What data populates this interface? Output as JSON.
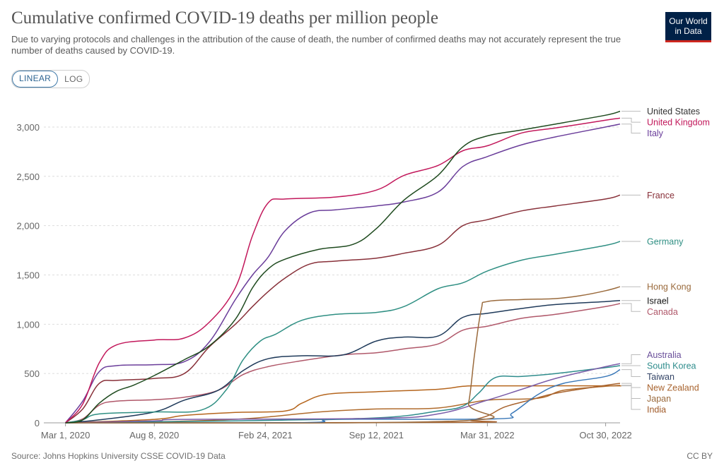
{
  "header": {
    "title": "Cumulative confirmed COVID-19 deaths per million people",
    "subtitle": "Due to varying protocols and challenges in the attribution of the cause of death, the number of confirmed deaths may not accurately represent the true number of deaths caused by COVID-19.",
    "logo_line1": "Our World",
    "logo_line2": "in Data",
    "logo_color": "#002147",
    "logo_accent": "#ce261e"
  },
  "scale_toggle": {
    "linear_label": "LINEAR",
    "log_label": "LOG",
    "selected": "LINEAR"
  },
  "footer": {
    "source": "Source: Johns Hopkins University CSSE COVID-19 Data",
    "license": "CC BY"
  },
  "chart_data": {
    "type": "line",
    "title": "Cumulative confirmed COVID-19 deaths per million people",
    "x_axis": {
      "type": "date",
      "range": [
        "2020-01-22",
        "2022-11-25"
      ],
      "ticks": [
        {
          "date": "2020-03-01",
          "label": "Mar 1, 2020"
        },
        {
          "date": "2020-08-08",
          "label": "Aug 8, 2020"
        },
        {
          "date": "2021-02-24",
          "label": "Feb 24, 2021"
        },
        {
          "date": "2021-09-12",
          "label": "Sep 12, 2021"
        },
        {
          "date": "2022-03-31",
          "label": "Mar 31, 2022"
        },
        {
          "date": "2022-10-30",
          "label": "Oct 30, 2022"
        }
      ]
    },
    "y_axis": {
      "range": [
        0,
        3200
      ],
      "ticks": [
        {
          "value": 0,
          "label": "0"
        },
        {
          "value": 500,
          "label": "500"
        },
        {
          "value": 1000,
          "label": "1,000"
        },
        {
          "value": 1500,
          "label": "1,500"
        },
        {
          "value": 2000,
          "label": "2,000"
        },
        {
          "value": 2500,
          "label": "2,500"
        },
        {
          "value": 3000,
          "label": "3,000"
        }
      ],
      "grid": true
    },
    "legend": "right-end-labels",
    "series": [
      {
        "name": "United States",
        "color": "#1e4a1e",
        "label_color": "#333333",
        "points": [
          [
            "2020-03-01",
            0
          ],
          [
            "2020-04-01",
            30
          ],
          [
            "2020-05-01",
            200
          ],
          [
            "2020-06-01",
            320
          ],
          [
            "2020-07-01",
            380
          ],
          [
            "2020-08-08",
            480
          ],
          [
            "2020-10-01",
            640
          ],
          [
            "2020-11-15",
            780
          ],
          [
            "2021-01-01",
            1050
          ],
          [
            "2021-02-01",
            1370
          ],
          [
            "2021-03-01",
            1560
          ],
          [
            "2021-04-01",
            1660
          ],
          [
            "2021-06-01",
            1760
          ],
          [
            "2021-08-01",
            1810
          ],
          [
            "2021-09-12",
            1970
          ],
          [
            "2021-11-01",
            2260
          ],
          [
            "2022-01-01",
            2510
          ],
          [
            "2022-02-15",
            2800
          ],
          [
            "2022-03-31",
            2910
          ],
          [
            "2022-06-01",
            2970
          ],
          [
            "2022-08-01",
            3030
          ],
          [
            "2022-10-30",
            3120
          ],
          [
            "2022-11-25",
            3160
          ]
        ]
      },
      {
        "name": "United Kingdom",
        "color": "#c2185b",
        "label_color": "#c2185b",
        "points": [
          [
            "2020-03-01",
            0
          ],
          [
            "2020-04-01",
            190
          ],
          [
            "2020-05-01",
            610
          ],
          [
            "2020-06-01",
            790
          ],
          [
            "2020-08-08",
            840
          ],
          [
            "2020-10-01",
            860
          ],
          [
            "2020-11-15",
            1020
          ],
          [
            "2021-01-01",
            1370
          ],
          [
            "2021-02-01",
            1900
          ],
          [
            "2021-03-01",
            2230
          ],
          [
            "2021-04-01",
            2270
          ],
          [
            "2021-07-01",
            2290
          ],
          [
            "2021-09-12",
            2360
          ],
          [
            "2021-11-01",
            2510
          ],
          [
            "2022-01-01",
            2610
          ],
          [
            "2022-02-15",
            2760
          ],
          [
            "2022-03-31",
            2810
          ],
          [
            "2022-06-01",
            2940
          ],
          [
            "2022-08-01",
            2990
          ],
          [
            "2022-10-30",
            3070
          ],
          [
            "2022-11-25",
            3090
          ]
        ]
      },
      {
        "name": "Italy",
        "color": "#6a3d9a",
        "label_color": "#6a3d9a",
        "points": [
          [
            "2020-03-01",
            0
          ],
          [
            "2020-04-01",
            220
          ],
          [
            "2020-05-01",
            520
          ],
          [
            "2020-06-01",
            580
          ],
          [
            "2020-08-08",
            590
          ],
          [
            "2020-10-01",
            620
          ],
          [
            "2020-11-15",
            820
          ],
          [
            "2021-01-01",
            1250
          ],
          [
            "2021-02-01",
            1500
          ],
          [
            "2021-03-01",
            1680
          ],
          [
            "2021-04-01",
            1950
          ],
          [
            "2021-05-15",
            2130
          ],
          [
            "2021-07-01",
            2160
          ],
          [
            "2021-09-12",
            2200
          ],
          [
            "2021-11-01",
            2240
          ],
          [
            "2022-01-01",
            2340
          ],
          [
            "2022-02-15",
            2600
          ],
          [
            "2022-03-31",
            2700
          ],
          [
            "2022-06-01",
            2820
          ],
          [
            "2022-08-01",
            2900
          ],
          [
            "2022-10-30",
            3000
          ],
          [
            "2022-11-25",
            3030
          ]
        ]
      },
      {
        "name": "France",
        "color": "#883039",
        "label_color": "#883039",
        "points": [
          [
            "2020-03-01",
            0
          ],
          [
            "2020-04-01",
            140
          ],
          [
            "2020-05-01",
            400
          ],
          [
            "2020-06-01",
            430
          ],
          [
            "2020-08-08",
            450
          ],
          [
            "2020-10-01",
            500
          ],
          [
            "2020-11-15",
            770
          ],
          [
            "2021-01-01",
            1000
          ],
          [
            "2021-02-01",
            1180
          ],
          [
            "2021-03-01",
            1330
          ],
          [
            "2021-04-01",
            1470
          ],
          [
            "2021-05-15",
            1610
          ],
          [
            "2021-07-01",
            1640
          ],
          [
            "2021-09-12",
            1670
          ],
          [
            "2021-11-01",
            1720
          ],
          [
            "2022-01-01",
            1800
          ],
          [
            "2022-02-15",
            2000
          ],
          [
            "2022-03-31",
            2060
          ],
          [
            "2022-06-01",
            2150
          ],
          [
            "2022-08-01",
            2200
          ],
          [
            "2022-10-30",
            2270
          ],
          [
            "2022-11-25",
            2310
          ]
        ]
      },
      {
        "name": "Germany",
        "color": "#2f8f83",
        "label_color": "#2f8f83",
        "points": [
          [
            "2020-03-01",
            0
          ],
          [
            "2020-04-01",
            30
          ],
          [
            "2020-05-01",
            90
          ],
          [
            "2020-08-08",
            110
          ],
          [
            "2020-11-01",
            130
          ],
          [
            "2020-12-15",
            330
          ],
          [
            "2021-01-15",
            640
          ],
          [
            "2021-02-15",
            830
          ],
          [
            "2021-03-15",
            900
          ],
          [
            "2021-05-01",
            1040
          ],
          [
            "2021-07-01",
            1100
          ],
          [
            "2021-09-12",
            1120
          ],
          [
            "2021-11-01",
            1180
          ],
          [
            "2022-01-01",
            1360
          ],
          [
            "2022-02-15",
            1420
          ],
          [
            "2022-03-31",
            1540
          ],
          [
            "2022-06-01",
            1650
          ],
          [
            "2022-08-01",
            1710
          ],
          [
            "2022-10-30",
            1800
          ],
          [
            "2022-11-25",
            1840
          ]
        ]
      },
      {
        "name": "Hong Kong",
        "color": "#9a6a3c",
        "label_color": "#9a6a3c",
        "points": [
          [
            "2020-03-01",
            0
          ],
          [
            "2022-02-10",
            20
          ],
          [
            "2022-02-25",
            200
          ],
          [
            "2022-03-08",
            700
          ],
          [
            "2022-03-20",
            1150
          ],
          [
            "2022-03-31",
            1230
          ],
          [
            "2022-06-01",
            1250
          ],
          [
            "2022-08-01",
            1260
          ],
          [
            "2022-09-15",
            1290
          ],
          [
            "2022-10-30",
            1340
          ],
          [
            "2022-11-25",
            1380
          ]
        ]
      },
      {
        "name": "Israel",
        "color": "#1f3a5a",
        "label_color": "#111111",
        "points": [
          [
            "2020-03-01",
            0
          ],
          [
            "2020-05-01",
            30
          ],
          [
            "2020-08-08",
            110
          ],
          [
            "2020-10-01",
            230
          ],
          [
            "2020-12-01",
            330
          ],
          [
            "2021-01-15",
            530
          ],
          [
            "2021-03-01",
            650
          ],
          [
            "2021-05-01",
            680
          ],
          [
            "2021-07-15",
            690
          ],
          [
            "2021-09-12",
            830
          ],
          [
            "2021-11-01",
            870
          ],
          [
            "2022-01-01",
            880
          ],
          [
            "2022-02-15",
            1070
          ],
          [
            "2022-03-31",
            1110
          ],
          [
            "2022-06-01",
            1160
          ],
          [
            "2022-08-01",
            1200
          ],
          [
            "2022-10-30",
            1230
          ],
          [
            "2022-11-25",
            1240
          ]
        ]
      },
      {
        "name": "Canada",
        "color": "#b0586a",
        "label_color": "#b0586a",
        "points": [
          [
            "2020-03-01",
            0
          ],
          [
            "2020-04-01",
            40
          ],
          [
            "2020-05-01",
            180
          ],
          [
            "2020-06-01",
            220
          ],
          [
            "2020-08-08",
            235
          ],
          [
            "2020-10-01",
            260
          ],
          [
            "2020-12-01",
            330
          ],
          [
            "2021-01-15",
            490
          ],
          [
            "2021-03-01",
            570
          ],
          [
            "2021-05-01",
            630
          ],
          [
            "2021-07-15",
            690
          ],
          [
            "2021-09-12",
            710
          ],
          [
            "2021-11-01",
            750
          ],
          [
            "2022-01-01",
            800
          ],
          [
            "2022-02-15",
            940
          ],
          [
            "2022-03-31",
            980
          ],
          [
            "2022-06-01",
            1060
          ],
          [
            "2022-08-01",
            1100
          ],
          [
            "2022-10-30",
            1180
          ],
          [
            "2022-11-25",
            1210
          ]
        ]
      },
      {
        "name": "Australia",
        "color": "#7a5ca8",
        "label_color": "#6a4f9a",
        "points": [
          [
            "2020-03-01",
            0
          ],
          [
            "2020-08-08",
            20
          ],
          [
            "2020-10-01",
            35
          ],
          [
            "2021-09-12",
            45
          ],
          [
            "2022-01-01",
            90
          ],
          [
            "2022-03-31",
            230
          ],
          [
            "2022-06-01",
            340
          ],
          [
            "2022-08-01",
            450
          ],
          [
            "2022-10-30",
            570
          ],
          [
            "2022-11-25",
            600
          ]
        ]
      },
      {
        "name": "South Korea",
        "color": "#2e8c8c",
        "label_color": "#2e8c8c",
        "points": [
          [
            "2020-03-01",
            0
          ],
          [
            "2021-01-01",
            20
          ],
          [
            "2021-09-12",
            50
          ],
          [
            "2022-01-01",
            120
          ],
          [
            "2022-02-15",
            170
          ],
          [
            "2022-03-15",
            300
          ],
          [
            "2022-04-15",
            460
          ],
          [
            "2022-06-01",
            470
          ],
          [
            "2022-08-01",
            500
          ],
          [
            "2022-10-30",
            560
          ],
          [
            "2022-11-25",
            580
          ]
        ]
      },
      {
        "name": "Taiwan",
        "color": "#3a78b8",
        "label_color": "#334466",
        "points": [
          [
            "2020-03-01",
            0
          ],
          [
            "2021-05-01",
            2
          ],
          [
            "2021-07-01",
            35
          ],
          [
            "2022-04-15",
            40
          ],
          [
            "2022-05-15",
            100
          ],
          [
            "2022-07-01",
            290
          ],
          [
            "2022-08-15",
            400
          ],
          [
            "2022-10-30",
            470
          ],
          [
            "2022-11-25",
            540
          ]
        ]
      },
      {
        "name": "New Zealand",
        "color": "#a8632e",
        "label_color": "#a8632e",
        "points": [
          [
            "2020-03-01",
            0
          ],
          [
            "2022-02-15",
            5
          ],
          [
            "2022-03-01",
            25
          ],
          [
            "2022-03-31",
            70
          ],
          [
            "2022-05-01",
            160
          ],
          [
            "2022-06-15",
            230
          ],
          [
            "2022-08-01",
            300
          ],
          [
            "2022-10-30",
            380
          ],
          [
            "2022-11-25",
            400
          ]
        ]
      },
      {
        "name": "Japan",
        "color": "#b06b2c",
        "label_color": "#9a6a3c",
        "points": [
          [
            "2020-03-01",
            0
          ],
          [
            "2020-08-08",
            10
          ],
          [
            "2021-01-15",
            40
          ],
          [
            "2021-06-01",
            110
          ],
          [
            "2021-09-12",
            140
          ],
          [
            "2022-01-01",
            150
          ],
          [
            "2022-03-31",
            230
          ],
          [
            "2022-07-01",
            250
          ],
          [
            "2022-08-15",
            330
          ],
          [
            "2022-10-30",
            370
          ],
          [
            "2022-11-25",
            380
          ]
        ]
      },
      {
        "name": "India",
        "color": "#b5651d",
        "label_color": "#a05a28",
        "points": [
          [
            "2020-03-01",
            0
          ],
          [
            "2020-08-08",
            35
          ],
          [
            "2020-10-01",
            75
          ],
          [
            "2021-01-01",
            105
          ],
          [
            "2021-04-01",
            120
          ],
          [
            "2021-05-01",
            200
          ],
          [
            "2021-06-15",
            290
          ],
          [
            "2021-09-12",
            315
          ],
          [
            "2022-01-01",
            340
          ],
          [
            "2022-02-15",
            370
          ],
          [
            "2022-03-31",
            375
          ],
          [
            "2022-10-30",
            375
          ],
          [
            "2022-11-25",
            375
          ]
        ]
      }
    ]
  }
}
